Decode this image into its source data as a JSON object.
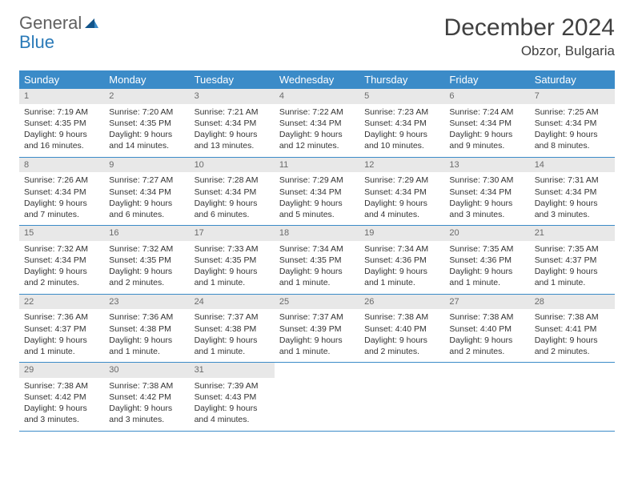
{
  "logo": {
    "word1": "General",
    "word2": "Blue"
  },
  "title": "December 2024",
  "location": "Obzor, Bulgaria",
  "theme": {
    "header_bg": "#3b8bc8",
    "header_fg": "#ffffff",
    "daynum_bg": "#e8e8e8",
    "daynum_fg": "#6a6a6a",
    "text_color": "#333333",
    "rule_color": "#3b8bc8",
    "logo_gray": "#606060",
    "logo_blue": "#2a7ab8",
    "sail_dark": "#12548a",
    "sail_light": "#3b8bc8"
  },
  "day_headers": [
    "Sunday",
    "Monday",
    "Tuesday",
    "Wednesday",
    "Thursday",
    "Friday",
    "Saturday"
  ],
  "weeks": [
    [
      {
        "n": "1",
        "sr": "7:19 AM",
        "ss": "4:35 PM",
        "dl": "9 hours and 16 minutes."
      },
      {
        "n": "2",
        "sr": "7:20 AM",
        "ss": "4:35 PM",
        "dl": "9 hours and 14 minutes."
      },
      {
        "n": "3",
        "sr": "7:21 AM",
        "ss": "4:34 PM",
        "dl": "9 hours and 13 minutes."
      },
      {
        "n": "4",
        "sr": "7:22 AM",
        "ss": "4:34 PM",
        "dl": "9 hours and 12 minutes."
      },
      {
        "n": "5",
        "sr": "7:23 AM",
        "ss": "4:34 PM",
        "dl": "9 hours and 10 minutes."
      },
      {
        "n": "6",
        "sr": "7:24 AM",
        "ss": "4:34 PM",
        "dl": "9 hours and 9 minutes."
      },
      {
        "n": "7",
        "sr": "7:25 AM",
        "ss": "4:34 PM",
        "dl": "9 hours and 8 minutes."
      }
    ],
    [
      {
        "n": "8",
        "sr": "7:26 AM",
        "ss": "4:34 PM",
        "dl": "9 hours and 7 minutes."
      },
      {
        "n": "9",
        "sr": "7:27 AM",
        "ss": "4:34 PM",
        "dl": "9 hours and 6 minutes."
      },
      {
        "n": "10",
        "sr": "7:28 AM",
        "ss": "4:34 PM",
        "dl": "9 hours and 6 minutes."
      },
      {
        "n": "11",
        "sr": "7:29 AM",
        "ss": "4:34 PM",
        "dl": "9 hours and 5 minutes."
      },
      {
        "n": "12",
        "sr": "7:29 AM",
        "ss": "4:34 PM",
        "dl": "9 hours and 4 minutes."
      },
      {
        "n": "13",
        "sr": "7:30 AM",
        "ss": "4:34 PM",
        "dl": "9 hours and 3 minutes."
      },
      {
        "n": "14",
        "sr": "7:31 AM",
        "ss": "4:34 PM",
        "dl": "9 hours and 3 minutes."
      }
    ],
    [
      {
        "n": "15",
        "sr": "7:32 AM",
        "ss": "4:34 PM",
        "dl": "9 hours and 2 minutes."
      },
      {
        "n": "16",
        "sr": "7:32 AM",
        "ss": "4:35 PM",
        "dl": "9 hours and 2 minutes."
      },
      {
        "n": "17",
        "sr": "7:33 AM",
        "ss": "4:35 PM",
        "dl": "9 hours and 1 minute."
      },
      {
        "n": "18",
        "sr": "7:34 AM",
        "ss": "4:35 PM",
        "dl": "9 hours and 1 minute."
      },
      {
        "n": "19",
        "sr": "7:34 AM",
        "ss": "4:36 PM",
        "dl": "9 hours and 1 minute."
      },
      {
        "n": "20",
        "sr": "7:35 AM",
        "ss": "4:36 PM",
        "dl": "9 hours and 1 minute."
      },
      {
        "n": "21",
        "sr": "7:35 AM",
        "ss": "4:37 PM",
        "dl": "9 hours and 1 minute."
      }
    ],
    [
      {
        "n": "22",
        "sr": "7:36 AM",
        "ss": "4:37 PM",
        "dl": "9 hours and 1 minute."
      },
      {
        "n": "23",
        "sr": "7:36 AM",
        "ss": "4:38 PM",
        "dl": "9 hours and 1 minute."
      },
      {
        "n": "24",
        "sr": "7:37 AM",
        "ss": "4:38 PM",
        "dl": "9 hours and 1 minute."
      },
      {
        "n": "25",
        "sr": "7:37 AM",
        "ss": "4:39 PM",
        "dl": "9 hours and 1 minute."
      },
      {
        "n": "26",
        "sr": "7:38 AM",
        "ss": "4:40 PM",
        "dl": "9 hours and 2 minutes."
      },
      {
        "n": "27",
        "sr": "7:38 AM",
        "ss": "4:40 PM",
        "dl": "9 hours and 2 minutes."
      },
      {
        "n": "28",
        "sr": "7:38 AM",
        "ss": "4:41 PM",
        "dl": "9 hours and 2 minutes."
      }
    ],
    [
      {
        "n": "29",
        "sr": "7:38 AM",
        "ss": "4:42 PM",
        "dl": "9 hours and 3 minutes."
      },
      {
        "n": "30",
        "sr": "7:38 AM",
        "ss": "4:42 PM",
        "dl": "9 hours and 3 minutes."
      },
      {
        "n": "31",
        "sr": "7:39 AM",
        "ss": "4:43 PM",
        "dl": "9 hours and 4 minutes."
      },
      null,
      null,
      null,
      null
    ]
  ],
  "labels": {
    "sunrise": "Sunrise: ",
    "sunset": "Sunset: ",
    "daylight": "Daylight: "
  }
}
